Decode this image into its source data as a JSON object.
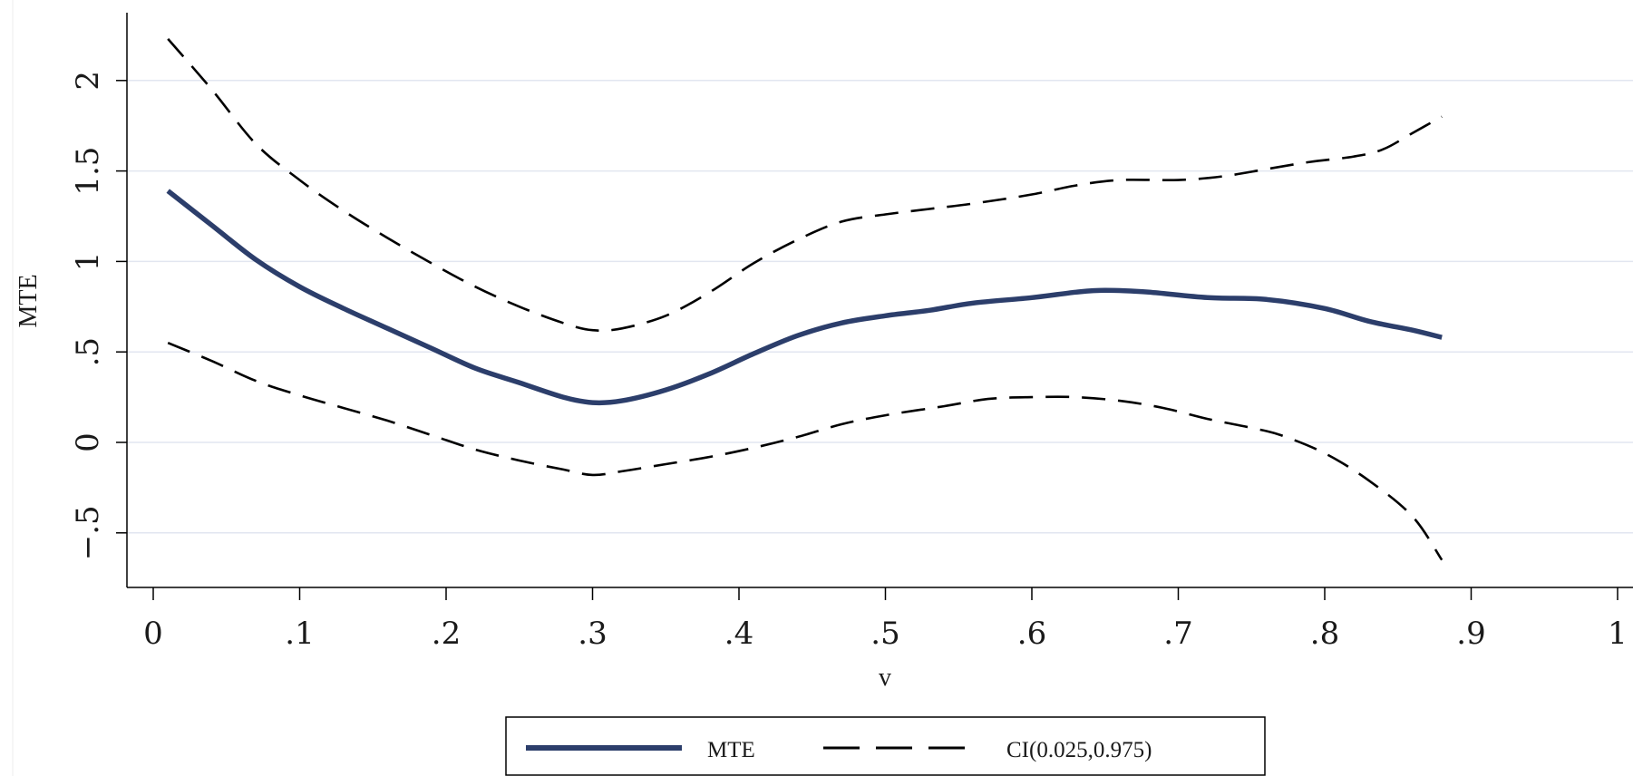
{
  "colors": {
    "mte_line": "#2c3e6b",
    "ci_line": "#000000",
    "grid": "#e2e6f0",
    "axis": "#000000"
  },
  "chart_data": {
    "type": "line",
    "title": "",
    "xlabel": "v",
    "ylabel": "MTE",
    "xlim": [
      0,
      1
    ],
    "ylim": [
      -0.8,
      2.35
    ],
    "x_ticks": [
      {
        "value": 0,
        "label": "0"
      },
      {
        "value": 0.1,
        "label": ".1"
      },
      {
        "value": 0.2,
        "label": ".2"
      },
      {
        "value": 0.3,
        "label": ".3"
      },
      {
        "value": 0.4,
        "label": ".4"
      },
      {
        "value": 0.5,
        "label": ".5"
      },
      {
        "value": 0.6,
        "label": ".6"
      },
      {
        "value": 0.7,
        "label": ".7"
      },
      {
        "value": 0.8,
        "label": ".8"
      },
      {
        "value": 0.9,
        "label": ".9"
      },
      {
        "value": 1,
        "label": "1"
      }
    ],
    "y_ticks": [
      {
        "value": -0.5,
        "label": "−.5"
      },
      {
        "value": 0,
        "label": "0"
      },
      {
        "value": 0.5,
        "label": ".5"
      },
      {
        "value": 1,
        "label": "1"
      },
      {
        "value": 1.5,
        "label": "1.5"
      },
      {
        "value": 2,
        "label": "2"
      }
    ],
    "grid": true,
    "legend_position": "bottom",
    "series": [
      {
        "name": "MTE",
        "style": "solid",
        "points": [
          [
            0.01,
            1.39
          ],
          [
            0.04,
            1.2
          ],
          [
            0.07,
            1.01
          ],
          [
            0.1,
            0.86
          ],
          [
            0.13,
            0.74
          ],
          [
            0.16,
            0.63
          ],
          [
            0.19,
            0.52
          ],
          [
            0.22,
            0.41
          ],
          [
            0.25,
            0.33
          ],
          [
            0.28,
            0.25
          ],
          [
            0.3,
            0.22
          ],
          [
            0.32,
            0.23
          ],
          [
            0.35,
            0.29
          ],
          [
            0.38,
            0.38
          ],
          [
            0.41,
            0.49
          ],
          [
            0.44,
            0.59
          ],
          [
            0.47,
            0.66
          ],
          [
            0.5,
            0.7
          ],
          [
            0.53,
            0.73
          ],
          [
            0.56,
            0.77
          ],
          [
            0.6,
            0.8
          ],
          [
            0.63,
            0.83
          ],
          [
            0.65,
            0.84
          ],
          [
            0.68,
            0.83
          ],
          [
            0.72,
            0.8
          ],
          [
            0.76,
            0.79
          ],
          [
            0.8,
            0.74
          ],
          [
            0.83,
            0.67
          ],
          [
            0.86,
            0.62
          ],
          [
            0.88,
            0.58
          ]
        ]
      },
      {
        "name": "CI(0.025,0.975)",
        "style": "dashed",
        "points": [
          [
            0.01,
            2.23
          ],
          [
            0.04,
            1.95
          ],
          [
            0.07,
            1.65
          ],
          [
            0.1,
            1.45
          ],
          [
            0.13,
            1.28
          ],
          [
            0.16,
            1.13
          ],
          [
            0.19,
            0.99
          ],
          [
            0.22,
            0.86
          ],
          [
            0.25,
            0.75
          ],
          [
            0.28,
            0.66
          ],
          [
            0.3,
            0.62
          ],
          [
            0.32,
            0.63
          ],
          [
            0.35,
            0.7
          ],
          [
            0.38,
            0.83
          ],
          [
            0.41,
            0.99
          ],
          [
            0.44,
            1.12
          ],
          [
            0.47,
            1.22
          ],
          [
            0.5,
            1.26
          ],
          [
            0.53,
            1.29
          ],
          [
            0.56,
            1.32
          ],
          [
            0.6,
            1.37
          ],
          [
            0.63,
            1.42
          ],
          [
            0.66,
            1.45
          ],
          [
            0.7,
            1.45
          ],
          [
            0.73,
            1.47
          ],
          [
            0.76,
            1.51
          ],
          [
            0.79,
            1.55
          ],
          [
            0.82,
            1.58
          ],
          [
            0.84,
            1.62
          ],
          [
            0.86,
            1.71
          ],
          [
            0.88,
            1.8
          ]
        ]
      },
      {
        "name": "CI(0.025,0.975)",
        "style": "dashed",
        "points": [
          [
            0.01,
            0.55
          ],
          [
            0.04,
            0.45
          ],
          [
            0.07,
            0.34
          ],
          [
            0.1,
            0.26
          ],
          [
            0.13,
            0.19
          ],
          [
            0.16,
            0.12
          ],
          [
            0.19,
            0.04
          ],
          [
            0.22,
            -0.04
          ],
          [
            0.25,
            -0.1
          ],
          [
            0.28,
            -0.15
          ],
          [
            0.3,
            -0.18
          ],
          [
            0.32,
            -0.16
          ],
          [
            0.35,
            -0.12
          ],
          [
            0.38,
            -0.08
          ],
          [
            0.41,
            -0.03
          ],
          [
            0.44,
            0.03
          ],
          [
            0.47,
            0.1
          ],
          [
            0.5,
            0.15
          ],
          [
            0.54,
            0.2
          ],
          [
            0.57,
            0.24
          ],
          [
            0.6,
            0.25
          ],
          [
            0.63,
            0.25
          ],
          [
            0.66,
            0.23
          ],
          [
            0.69,
            0.19
          ],
          [
            0.72,
            0.13
          ],
          [
            0.75,
            0.08
          ],
          [
            0.77,
            0.04
          ],
          [
            0.8,
            -0.06
          ],
          [
            0.83,
            -0.21
          ],
          [
            0.86,
            -0.41
          ],
          [
            0.88,
            -0.65
          ]
        ]
      }
    ],
    "legend": [
      {
        "label": "MTE",
        "style": "solid"
      },
      {
        "label": "CI(0.025,0.975)",
        "style": "dashed"
      }
    ]
  }
}
